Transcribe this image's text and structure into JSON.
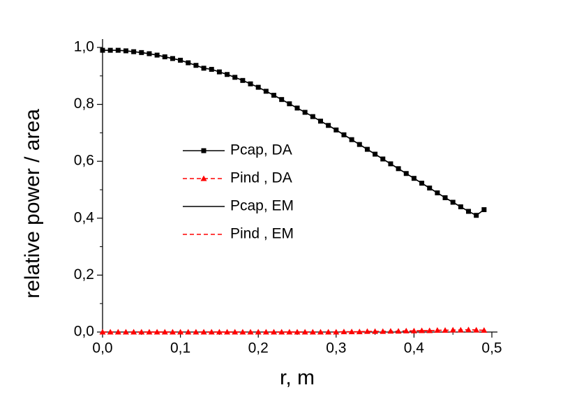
{
  "chart_data": {
    "type": "line",
    "xlabel": "r, m",
    "ylabel": "relative power / area",
    "xlim": [
      0,
      0.5
    ],
    "ylim": [
      0,
      1.0
    ],
    "xticks": [
      {
        "value": 0,
        "label": "0,0"
      },
      {
        "value": 0.1,
        "label": "0,1"
      },
      {
        "value": 0.2,
        "label": "0,2"
      },
      {
        "value": 0.3,
        "label": "0,3"
      },
      {
        "value": 0.4,
        "label": "0,4"
      },
      {
        "value": 0.5,
        "label": "0,5"
      }
    ],
    "yticks": [
      {
        "value": 0,
        "label": "0,0"
      },
      {
        "value": 0.2,
        "label": "0,2"
      },
      {
        "value": 0.4,
        "label": "0,4"
      },
      {
        "value": 0.6,
        "label": "0,6"
      },
      {
        "value": 0.8,
        "label": "0,8"
      },
      {
        "value": 1.0,
        "label": "1,0"
      }
    ],
    "x": [
      0,
      0.01,
      0.02,
      0.03,
      0.04,
      0.05,
      0.06,
      0.07,
      0.08,
      0.09,
      0.1,
      0.11,
      0.12,
      0.13,
      0.14,
      0.15,
      0.16,
      0.17,
      0.18,
      0.19,
      0.2,
      0.21,
      0.22,
      0.23,
      0.24,
      0.25,
      0.26,
      0.27,
      0.28,
      0.29,
      0.3,
      0.31,
      0.32,
      0.33,
      0.34,
      0.35,
      0.36,
      0.37,
      0.38,
      0.39,
      0.4,
      0.41,
      0.42,
      0.43,
      0.44,
      0.45,
      0.46,
      0.47,
      0.48,
      0.49
    ],
    "series": [
      {
        "name": "Pcap, DA",
        "color": "#000000",
        "marker": "square",
        "dash": false,
        "values": [
          0.99,
          0.99,
          0.99,
          0.988,
          0.985,
          0.982,
          0.978,
          0.973,
          0.967,
          0.961,
          0.955,
          0.946,
          0.937,
          0.927,
          0.923,
          0.914,
          0.905,
          0.895,
          0.884,
          0.872,
          0.86,
          0.846,
          0.832,
          0.817,
          0.802,
          0.787,
          0.772,
          0.757,
          0.741,
          0.726,
          0.71,
          0.693,
          0.676,
          0.659,
          0.642,
          0.625,
          0.608,
          0.591,
          0.574,
          0.557,
          0.54,
          0.523,
          0.506,
          0.489,
          0.472,
          0.456,
          0.44,
          0.424,
          0.41,
          0.43
        ]
      },
      {
        "name": "Pind , DA",
        "color": "#ff0000",
        "marker": "triangle",
        "dash": true,
        "values": [
          0,
          0,
          0,
          0,
          0,
          0,
          0,
          0,
          0,
          0,
          0,
          0,
          0,
          0,
          0,
          0,
          0,
          0,
          0,
          0,
          0,
          0,
          0,
          0,
          0,
          0,
          0,
          0,
          0,
          0,
          0,
          0.001,
          0.001,
          0.001,
          0.002,
          0.002,
          0.002,
          0.003,
          0.003,
          0.004,
          0.004,
          0.005,
          0.005,
          0.006,
          0.006,
          0.007,
          0.007,
          0.008,
          0.007,
          0.006
        ]
      },
      {
        "name": "Pcap, EM",
        "color": "#000000",
        "marker": "none",
        "dash": false,
        "values": [
          0.99,
          0.99,
          0.99,
          0.988,
          0.985,
          0.982,
          0.978,
          0.973,
          0.967,
          0.961,
          0.955,
          0.946,
          0.937,
          0.927,
          0.923,
          0.914,
          0.905,
          0.895,
          0.884,
          0.872,
          0.86,
          0.846,
          0.832,
          0.817,
          0.802,
          0.787,
          0.772,
          0.757,
          0.741,
          0.726,
          0.71,
          0.693,
          0.676,
          0.659,
          0.642,
          0.625,
          0.608,
          0.591,
          0.574,
          0.557,
          0.54,
          0.523,
          0.506,
          0.489,
          0.472,
          0.456,
          0.44,
          0.424,
          0.41,
          0.43
        ]
      },
      {
        "name": "Pind , EM",
        "color": "#ff0000",
        "marker": "none",
        "dash": true,
        "values": [
          0,
          0,
          0,
          0,
          0,
          0,
          0,
          0,
          0,
          0,
          0,
          0,
          0,
          0,
          0,
          0,
          0,
          0,
          0,
          0,
          0,
          0,
          0,
          0,
          0,
          0,
          0,
          0,
          0,
          0,
          0,
          0.001,
          0.001,
          0.001,
          0.002,
          0.002,
          0.002,
          0.003,
          0.003,
          0.004,
          0.004,
          0.005,
          0.005,
          0.006,
          0.006,
          0.007,
          0.007,
          0.008,
          0.007,
          0.006
        ]
      }
    ]
  }
}
